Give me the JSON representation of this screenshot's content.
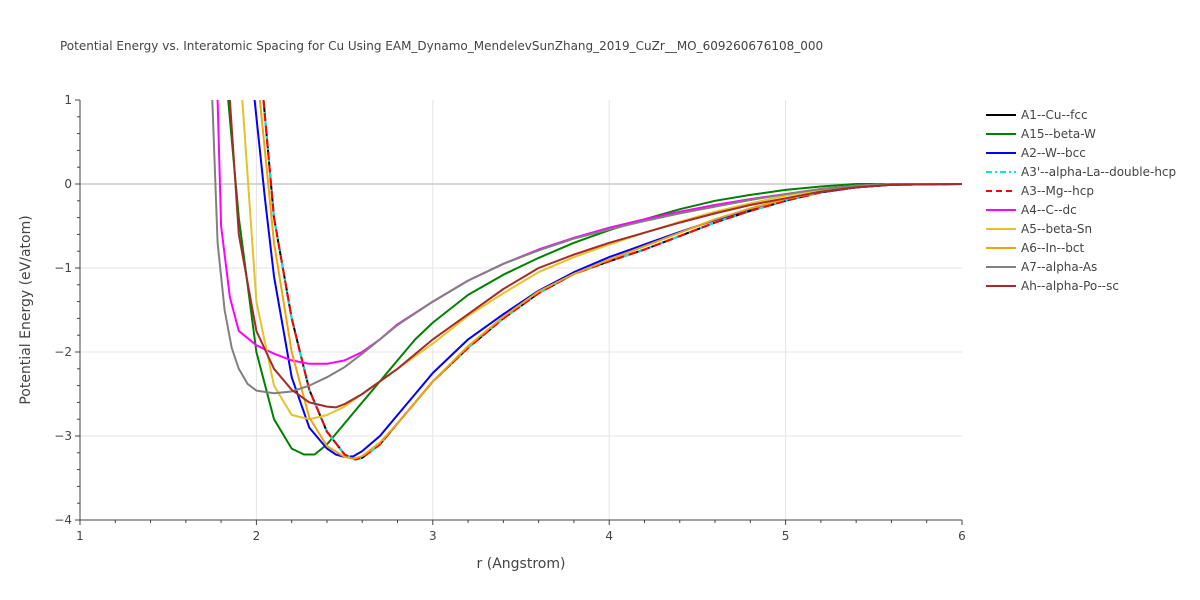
{
  "chart_data": {
    "type": "line",
    "title": "Potential Energy vs. Interatomic Spacing for Cu Using EAM_Dynamo_MendelevSunZhang_2019_CuZr__MO_609260676108_000",
    "xlabel": "r (Angstrom)",
    "ylabel": "Potential Energy (eV/atom)",
    "xlim": [
      1,
      6
    ],
    "ylim": [
      -4,
      1
    ],
    "x_ticks": [
      "1",
      "2",
      "3",
      "4",
      "5",
      "6"
    ],
    "y_ticks": [
      "−4",
      "−3",
      "−2",
      "−1",
      "0",
      "1"
    ],
    "grid": true,
    "legend_position": "right",
    "series": [
      {
        "name": "A1--Cu--fcc",
        "color": "#000000",
        "dash": "solid",
        "x": [
          2.04,
          2.1,
          2.2,
          2.3,
          2.4,
          2.5,
          2.56,
          2.6,
          2.7,
          2.8,
          2.9,
          3.0,
          3.2,
          3.4,
          3.6,
          3.8,
          4.0,
          4.2,
          4.4,
          4.6,
          4.8,
          5.0,
          5.2,
          5.4,
          5.6,
          6.0
        ],
        "y": [
          1,
          -0.4,
          -1.6,
          -2.45,
          -2.95,
          -3.22,
          -3.28,
          -3.26,
          -3.1,
          -2.85,
          -2.6,
          -2.35,
          -1.95,
          -1.6,
          -1.3,
          -1.07,
          -0.92,
          -0.78,
          -0.62,
          -0.46,
          -0.32,
          -0.2,
          -0.1,
          -0.04,
          -0.01,
          0
        ]
      },
      {
        "name": "A15--beta-W",
        "color": "#008000",
        "dash": "solid",
        "x": [
          1.84,
          1.9,
          2.0,
          2.1,
          2.2,
          2.27,
          2.33,
          2.4,
          2.5,
          2.6,
          2.7,
          2.8,
          2.9,
          3.0,
          3.2,
          3.4,
          3.6,
          3.8,
          4.0,
          4.2,
          4.4,
          4.6,
          4.8,
          5.0,
          5.2,
          5.4,
          5.6,
          6.0
        ],
        "y": [
          1,
          -0.4,
          -2.0,
          -2.8,
          -3.15,
          -3.22,
          -3.22,
          -3.1,
          -2.85,
          -2.6,
          -2.35,
          -2.1,
          -1.85,
          -1.65,
          -1.32,
          -1.08,
          -0.88,
          -0.7,
          -0.55,
          -0.42,
          -0.3,
          -0.2,
          -0.13,
          -0.07,
          -0.03,
          0,
          0,
          0
        ]
      },
      {
        "name": "A2--W--bcc",
        "color": "#0000ff",
        "dash": "solid",
        "x": [
          1.99,
          2.05,
          2.1,
          2.2,
          2.3,
          2.4,
          2.45,
          2.5,
          2.55,
          2.6,
          2.7,
          2.8,
          2.9,
          3.0,
          3.2,
          3.4,
          3.6,
          3.8,
          4.0,
          4.2,
          4.4,
          4.6,
          4.8,
          5.0,
          5.2,
          5.4,
          5.6,
          6.0
        ],
        "y": [
          1,
          -0.2,
          -1.1,
          -2.3,
          -2.9,
          -3.15,
          -3.22,
          -3.25,
          -3.24,
          -3.18,
          -3.0,
          -2.75,
          -2.5,
          -2.25,
          -1.85,
          -1.55,
          -1.27,
          -1.05,
          -0.87,
          -0.72,
          -0.57,
          -0.43,
          -0.3,
          -0.19,
          -0.1,
          -0.04,
          -0.01,
          0
        ]
      },
      {
        "name": "A3'--alpha-La--double-hcp",
        "color": "#00e5ee",
        "dash": "dashdot",
        "x": [
          2.04,
          2.1,
          2.2,
          2.3,
          2.4,
          2.5,
          2.56,
          2.6,
          2.7,
          2.8,
          2.9,
          3.0,
          3.2,
          3.4,
          3.6,
          3.8,
          4.0,
          4.2,
          4.4,
          4.6,
          4.8,
          5.0,
          5.2,
          5.4,
          5.6,
          6.0
        ],
        "y": [
          1,
          -0.4,
          -1.6,
          -2.45,
          -2.95,
          -3.22,
          -3.28,
          -3.26,
          -3.1,
          -2.85,
          -2.6,
          -2.35,
          -1.95,
          -1.6,
          -1.3,
          -1.07,
          -0.92,
          -0.78,
          -0.62,
          -0.46,
          -0.32,
          -0.2,
          -0.1,
          -0.04,
          -0.01,
          0
        ]
      },
      {
        "name": "A3--Mg--hcp",
        "color": "#ff0000",
        "dash": "dash",
        "x": [
          2.04,
          2.1,
          2.2,
          2.3,
          2.4,
          2.5,
          2.56,
          2.6,
          2.7,
          2.8,
          2.9,
          3.0,
          3.2,
          3.4,
          3.6,
          3.8,
          4.0,
          4.2,
          4.4,
          4.6,
          4.8,
          5.0,
          5.2,
          5.4,
          5.6,
          6.0
        ],
        "y": [
          1,
          -0.4,
          -1.6,
          -2.45,
          -2.95,
          -3.22,
          -3.28,
          -3.26,
          -3.1,
          -2.85,
          -2.6,
          -2.35,
          -1.95,
          -1.6,
          -1.3,
          -1.07,
          -0.92,
          -0.78,
          -0.62,
          -0.46,
          -0.32,
          -0.2,
          -0.1,
          -0.04,
          -0.01,
          0
        ]
      },
      {
        "name": "A4--C--dc",
        "color": "#ff00ff",
        "dash": "solid",
        "x": [
          1.78,
          1.8,
          1.85,
          1.9,
          2.0,
          2.1,
          2.2,
          2.3,
          2.4,
          2.5,
          2.6,
          2.7,
          2.8,
          3.0,
          3.2,
          3.4,
          3.6,
          3.8,
          4.0,
          4.2,
          4.4,
          4.6,
          4.8,
          5.0,
          5.2,
          5.4,
          5.6,
          6.0
        ],
        "y": [
          1,
          -0.5,
          -1.35,
          -1.75,
          -1.92,
          -2.02,
          -2.1,
          -2.14,
          -2.14,
          -2.1,
          -2.0,
          -1.85,
          -1.67,
          -1.4,
          -1.15,
          -0.95,
          -0.78,
          -0.64,
          -0.52,
          -0.42,
          -0.33,
          -0.25,
          -0.18,
          -0.12,
          -0.06,
          -0.02,
          0,
          0
        ]
      },
      {
        "name": "A5--beta-Sn",
        "color": "#e6c229",
        "dash": "solid",
        "x": [
          1.92,
          2.0,
          2.1,
          2.2,
          2.3,
          2.4,
          2.5,
          2.6,
          2.7,
          2.8,
          2.9,
          3.0,
          3.2,
          3.4,
          3.6,
          3.8,
          4.0,
          4.2,
          4.4,
          4.6,
          4.8,
          5.0,
          5.2,
          5.4,
          5.6,
          6.0
        ],
        "y": [
          1,
          -1.4,
          -2.4,
          -2.75,
          -2.8,
          -2.75,
          -2.65,
          -2.5,
          -2.35,
          -2.2,
          -2.05,
          -1.9,
          -1.57,
          -1.3,
          -1.05,
          -0.87,
          -0.72,
          -0.58,
          -0.45,
          -0.33,
          -0.23,
          -0.14,
          -0.07,
          -0.02,
          0,
          0
        ]
      },
      {
        "name": "A6--In--bct",
        "color": "#f0a30a",
        "dash": "solid",
        "x": [
          2.02,
          2.1,
          2.2,
          2.3,
          2.4,
          2.5,
          2.55,
          2.6,
          2.7,
          2.8,
          2.9,
          3.0,
          3.2,
          3.4,
          3.6,
          3.8,
          4.0,
          4.2,
          4.4,
          4.6,
          4.8,
          5.0,
          5.2,
          5.4,
          5.6,
          6.0
        ],
        "y": [
          1,
          -0.7,
          -2.0,
          -2.78,
          -3.12,
          -3.25,
          -3.27,
          -3.24,
          -3.08,
          -2.85,
          -2.6,
          -2.35,
          -1.93,
          -1.58,
          -1.28,
          -1.07,
          -0.9,
          -0.74,
          -0.58,
          -0.42,
          -0.29,
          -0.18,
          -0.09,
          -0.03,
          0,
          0
        ]
      },
      {
        "name": "A7--alpha-As",
        "color": "#808080",
        "dash": "solid",
        "x": [
          1.75,
          1.78,
          1.82,
          1.86,
          1.9,
          1.95,
          2.0,
          2.1,
          2.2,
          2.3,
          2.4,
          2.5,
          2.6,
          2.7,
          2.8,
          3.0,
          3.2,
          3.4,
          3.6,
          3.8,
          4.0,
          4.2,
          4.4,
          4.6,
          4.8,
          5.0,
          5.2,
          5.4,
          5.6,
          6.0
        ],
        "y": [
          1,
          -0.7,
          -1.5,
          -1.95,
          -2.2,
          -2.38,
          -2.46,
          -2.49,
          -2.47,
          -2.4,
          -2.3,
          -2.18,
          -2.02,
          -1.85,
          -1.68,
          -1.4,
          -1.15,
          -0.95,
          -0.79,
          -0.65,
          -0.54,
          -0.44,
          -0.35,
          -0.27,
          -0.19,
          -0.12,
          -0.06,
          -0.02,
          0,
          0
        ]
      },
      {
        "name": "Ah--alpha-Po--sc",
        "color": "#a52a2a",
        "dash": "solid",
        "x": [
          1.85,
          1.9,
          2.0,
          2.1,
          2.2,
          2.3,
          2.4,
          2.45,
          2.5,
          2.6,
          2.7,
          2.8,
          3.0,
          3.2,
          3.4,
          3.6,
          3.8,
          4.0,
          4.2,
          4.4,
          4.6,
          4.8,
          5.0,
          5.2,
          5.4,
          5.6,
          6.0
        ],
        "y": [
          1,
          -0.6,
          -1.75,
          -2.2,
          -2.45,
          -2.6,
          -2.65,
          -2.66,
          -2.62,
          -2.5,
          -2.35,
          -2.2,
          -1.85,
          -1.55,
          -1.25,
          -1.0,
          -0.84,
          -0.7,
          -0.58,
          -0.46,
          -0.35,
          -0.25,
          -0.17,
          -0.09,
          -0.04,
          -0.01,
          0
        ]
      }
    ]
  }
}
